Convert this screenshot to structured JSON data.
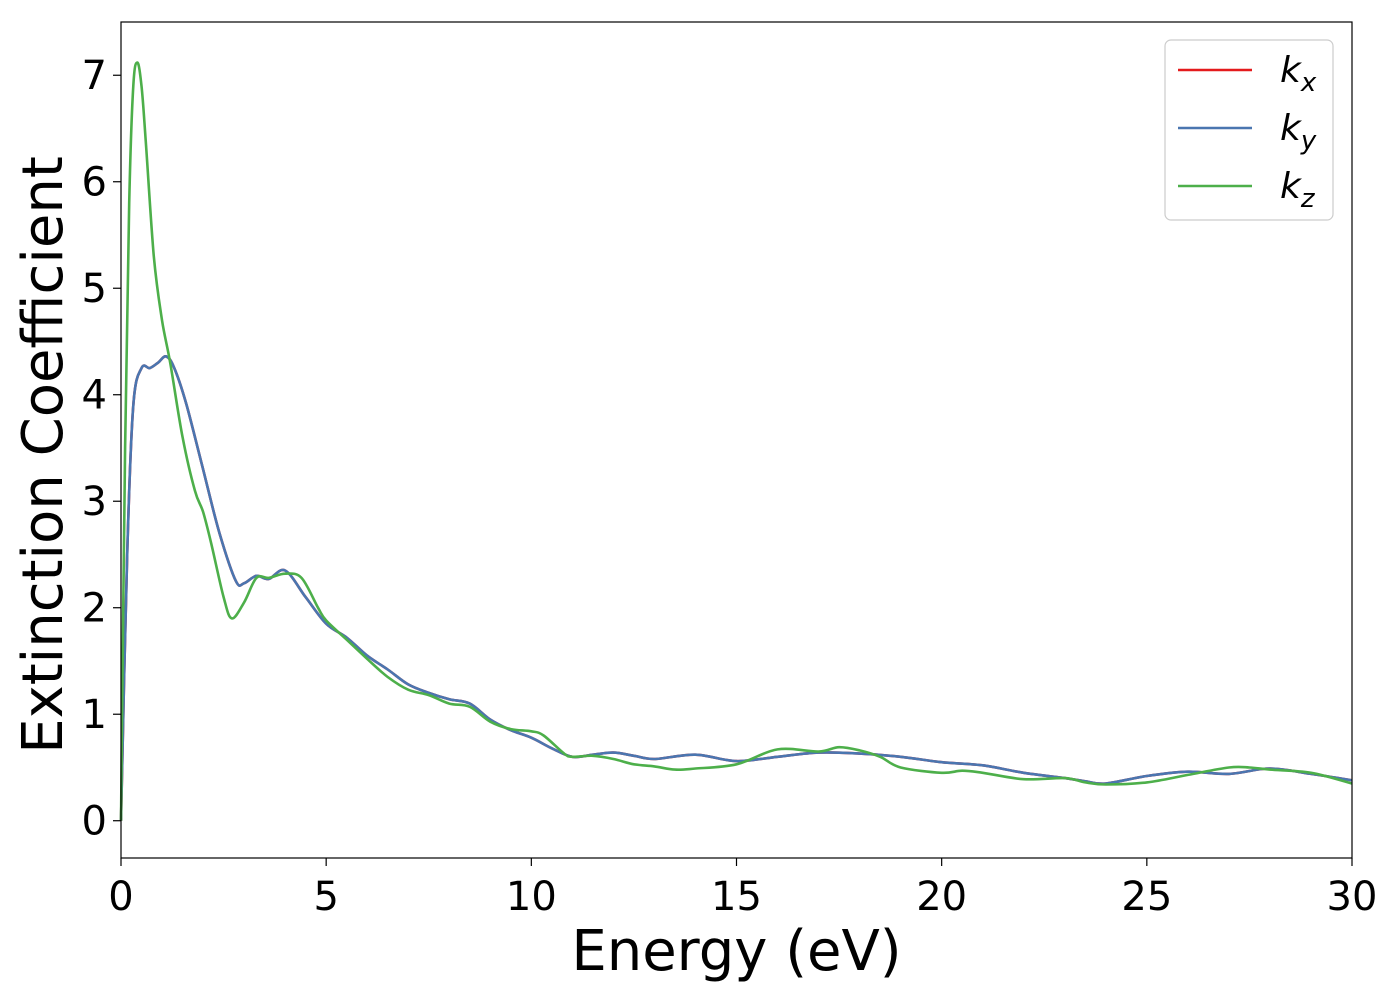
{
  "chart_data": {
    "type": "line",
    "xlabel": "Energy (eV)",
    "ylabel": "Extinction Coefficient",
    "xlim": [
      0,
      30
    ],
    "ylim": [
      -0.35,
      7.5
    ],
    "xticks": [
      "0",
      "5",
      "10",
      "15",
      "20",
      "25",
      "30"
    ],
    "yticks": [
      "0",
      "1",
      "2",
      "3",
      "4",
      "5",
      "6",
      "7"
    ],
    "grid": false,
    "legend_position": "top-right",
    "series": [
      {
        "name": "k_x",
        "legend_main": "k",
        "legend_sub": "x",
        "color": "#e41a1c",
        "x": [
          0,
          0.15,
          0.3,
          0.5,
          0.7,
          0.9,
          1.1,
          1.3,
          1.6,
          2.0,
          2.4,
          2.8,
          3.0,
          3.3,
          3.6,
          4.0,
          4.5,
          5.0,
          5.5,
          6.0,
          6.5,
          7.0,
          7.5,
          8.0,
          8.5,
          9.0,
          9.5,
          10.0,
          10.5,
          11.0,
          11.5,
          12.0,
          12.5,
          13.0,
          14.0,
          15.0,
          16.0,
          17.0,
          18.0,
          19.0,
          20.0,
          21.0,
          22.0,
          23.0,
          23.5,
          24.0,
          25.0,
          26.0,
          27.0,
          28.0,
          29.0,
          30.0
        ],
        "y": [
          0,
          2.5,
          3.9,
          4.25,
          4.25,
          4.3,
          4.36,
          4.25,
          3.9,
          3.3,
          2.7,
          2.25,
          2.23,
          2.3,
          2.27,
          2.35,
          2.1,
          1.85,
          1.72,
          1.55,
          1.42,
          1.28,
          1.2,
          1.14,
          1.1,
          0.95,
          0.85,
          0.78,
          0.68,
          0.6,
          0.62,
          0.64,
          0.61,
          0.58,
          0.62,
          0.56,
          0.6,
          0.64,
          0.63,
          0.6,
          0.55,
          0.52,
          0.45,
          0.4,
          0.37,
          0.35,
          0.42,
          0.46,
          0.44,
          0.49,
          0.44,
          0.38
        ]
      },
      {
        "name": "k_y",
        "legend_main": "k",
        "legend_sub": "y",
        "color": "#4a76b0",
        "x": [
          0,
          0.15,
          0.3,
          0.5,
          0.7,
          0.9,
          1.1,
          1.3,
          1.6,
          2.0,
          2.4,
          2.8,
          3.0,
          3.3,
          3.6,
          4.0,
          4.5,
          5.0,
          5.5,
          6.0,
          6.5,
          7.0,
          7.5,
          8.0,
          8.5,
          9.0,
          9.5,
          10.0,
          10.5,
          11.0,
          11.5,
          12.0,
          12.5,
          13.0,
          14.0,
          15.0,
          16.0,
          17.0,
          18.0,
          19.0,
          20.0,
          21.0,
          22.0,
          23.0,
          23.5,
          24.0,
          25.0,
          26.0,
          27.0,
          28.0,
          29.0,
          30.0
        ],
        "y": [
          0,
          2.5,
          3.9,
          4.25,
          4.25,
          4.3,
          4.36,
          4.25,
          3.9,
          3.3,
          2.7,
          2.25,
          2.23,
          2.3,
          2.27,
          2.35,
          2.1,
          1.85,
          1.72,
          1.55,
          1.42,
          1.28,
          1.2,
          1.14,
          1.1,
          0.95,
          0.85,
          0.78,
          0.68,
          0.6,
          0.62,
          0.64,
          0.61,
          0.58,
          0.62,
          0.56,
          0.6,
          0.64,
          0.63,
          0.6,
          0.55,
          0.52,
          0.45,
          0.4,
          0.37,
          0.35,
          0.42,
          0.46,
          0.44,
          0.49,
          0.44,
          0.38
        ]
      },
      {
        "name": "k_z",
        "legend_main": "k",
        "legend_sub": "z",
        "color": "#4daf4a",
        "x": [
          0,
          0.1,
          0.2,
          0.3,
          0.4,
          0.5,
          0.6,
          0.8,
          1.0,
          1.2,
          1.5,
          1.8,
          2.0,
          2.2,
          2.5,
          2.7,
          3.0,
          3.3,
          3.6,
          4.0,
          4.4,
          4.8,
          5.0,
          5.5,
          6.0,
          6.5,
          7.0,
          7.5,
          8.0,
          8.5,
          9.0,
          9.5,
          10.0,
          10.3,
          10.8,
          11.0,
          11.5,
          12.0,
          12.5,
          13.0,
          13.5,
          14.0,
          15.0,
          16.0,
          17.0,
          17.5,
          18.0,
          18.5,
          19.0,
          20.0,
          20.5,
          21.0,
          22.0,
          23.0,
          23.5,
          24.0,
          25.0,
          26.0,
          27.0,
          27.5,
          28.0,
          29.0,
          30.0
        ],
        "y": [
          0,
          3.5,
          5.8,
          6.9,
          7.12,
          6.9,
          6.4,
          5.3,
          4.7,
          4.3,
          3.6,
          3.1,
          2.9,
          2.6,
          2.1,
          1.9,
          2.05,
          2.28,
          2.28,
          2.32,
          2.28,
          2.0,
          1.88,
          1.7,
          1.52,
          1.35,
          1.23,
          1.18,
          1.1,
          1.07,
          0.93,
          0.86,
          0.84,
          0.8,
          0.63,
          0.6,
          0.61,
          0.58,
          0.53,
          0.51,
          0.48,
          0.49,
          0.53,
          0.67,
          0.65,
          0.69,
          0.66,
          0.6,
          0.5,
          0.45,
          0.47,
          0.45,
          0.39,
          0.4,
          0.36,
          0.34,
          0.36,
          0.43,
          0.5,
          0.5,
          0.48,
          0.45,
          0.35
        ]
      }
    ]
  }
}
